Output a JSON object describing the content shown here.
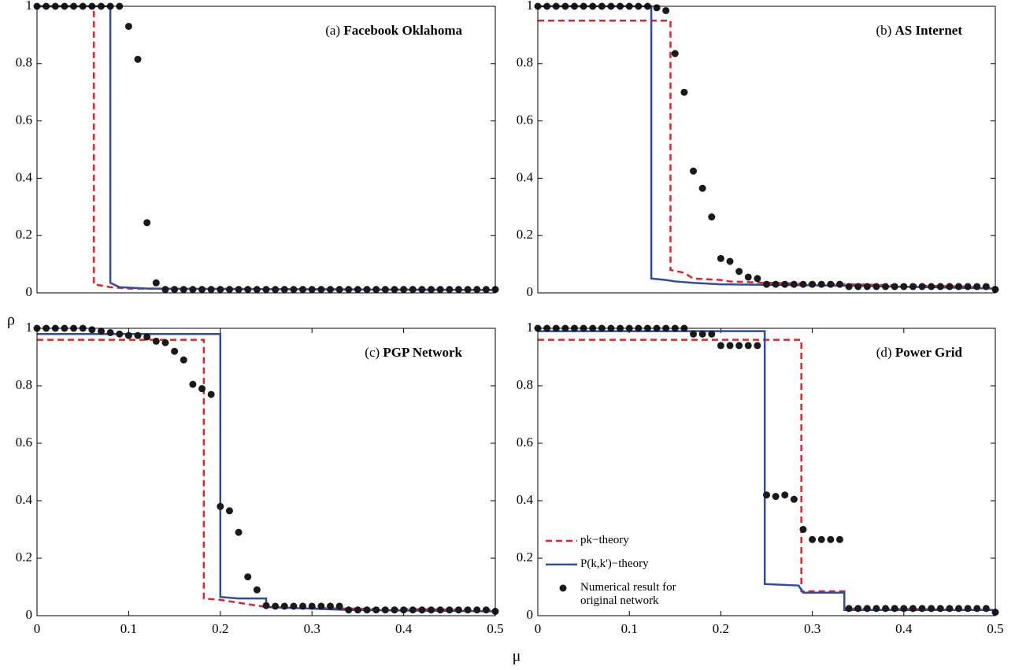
{
  "ylabel": "ρ",
  "xlabel": "μ",
  "chart_data": [
    {
      "type": "line",
      "panel": "(a)",
      "title": "Facebook Oklahoma",
      "xlim": [
        0,
        0.5
      ],
      "ylim": [
        0,
        1
      ],
      "yticks": [
        0,
        0.2,
        0.4,
        0.6,
        0.8,
        1
      ],
      "series": [
        {
          "color": "#e8202a",
          "style": "dashed",
          "x": [
            0,
            0.062,
            0.062,
            0.08,
            0.1,
            0.5
          ],
          "values": [
            1,
            1,
            0.03,
            0.02,
            0.015,
            0.01
          ]
        },
        {
          "color": "#2e4d9e",
          "style": "solid",
          "x": [
            0,
            0.08,
            0.08,
            0.09,
            0.12,
            0.5
          ],
          "values": [
            1,
            1,
            0.035,
            0.02,
            0.015,
            0.01
          ]
        },
        {
          "color": "#1a1a1a",
          "style": "dots",
          "x": [
            0,
            0.01,
            0.02,
            0.03,
            0.04,
            0.05,
            0.06,
            0.07,
            0.08,
            0.09,
            0.1,
            0.11,
            0.12,
            0.13,
            0.14,
            0.15,
            0.16,
            0.17,
            0.18,
            0.19,
            0.2,
            0.21,
            0.22,
            0.23,
            0.24,
            0.25,
            0.26,
            0.27,
            0.28,
            0.29,
            0.3,
            0.31,
            0.32,
            0.33,
            0.34,
            0.35,
            0.36,
            0.37,
            0.38,
            0.39,
            0.4,
            0.41,
            0.42,
            0.43,
            0.44,
            0.45,
            0.46,
            0.47,
            0.48,
            0.49,
            0.5
          ],
          "values": [
            1,
            1,
            1,
            1,
            1,
            1,
            1,
            1,
            1,
            1,
            0.93,
            0.815,
            0.245,
            0.035,
            0.012,
            0.012,
            0.012,
            0.012,
            0.012,
            0.012,
            0.012,
            0.012,
            0.012,
            0.012,
            0.012,
            0.012,
            0.012,
            0.012,
            0.012,
            0.012,
            0.012,
            0.012,
            0.012,
            0.012,
            0.012,
            0.012,
            0.012,
            0.012,
            0.012,
            0.012,
            0.012,
            0.012,
            0.012,
            0.012,
            0.012,
            0.012,
            0.012,
            0.012,
            0.012,
            0.012,
            0.012
          ]
        }
      ]
    },
    {
      "type": "line",
      "panel": "(b)",
      "title": "AS Internet",
      "xlim": [
        0,
        0.5
      ],
      "ylim": [
        0,
        1
      ],
      "yticks": [
        0,
        0.2,
        0.4,
        0.6,
        0.8,
        1
      ],
      "series": [
        {
          "color": "#e8202a",
          "style": "dashed",
          "x": [
            0,
            0.145,
            0.145,
            0.16,
            0.17,
            0.2,
            0.21,
            0.25,
            0.34,
            0.5
          ],
          "values": [
            0.95,
            0.95,
            0.08,
            0.07,
            0.05,
            0.045,
            0.04,
            0.035,
            0.03,
            0.02
          ]
        },
        {
          "color": "#2e4d9e",
          "style": "solid",
          "x": [
            0,
            0.124,
            0.124,
            0.14,
            0.15,
            0.17,
            0.2,
            0.34,
            0.5
          ],
          "values": [
            1,
            1,
            0.05,
            0.045,
            0.04,
            0.035,
            0.03,
            0.025,
            0.015
          ]
        },
        {
          "color": "#1a1a1a",
          "style": "dots",
          "x": [
            0,
            0.01,
            0.02,
            0.03,
            0.04,
            0.05,
            0.06,
            0.07,
            0.08,
            0.09,
            0.1,
            0.11,
            0.12,
            0.13,
            0.14,
            0.15,
            0.16,
            0.17,
            0.18,
            0.19,
            0.2,
            0.21,
            0.22,
            0.23,
            0.24,
            0.25,
            0.26,
            0.27,
            0.28,
            0.29,
            0.3,
            0.31,
            0.32,
            0.33,
            0.34,
            0.35,
            0.36,
            0.37,
            0.38,
            0.39,
            0.4,
            0.41,
            0.42,
            0.43,
            0.44,
            0.45,
            0.46,
            0.47,
            0.48,
            0.49,
            0.5
          ],
          "values": [
            1,
            1,
            1,
            1,
            1,
            1,
            1,
            1,
            1,
            1,
            1,
            1,
            1,
            0.995,
            0.985,
            0.835,
            0.7,
            0.425,
            0.365,
            0.265,
            0.12,
            0.11,
            0.075,
            0.055,
            0.05,
            0.03,
            0.03,
            0.03,
            0.03,
            0.03,
            0.03,
            0.03,
            0.03,
            0.03,
            0.022,
            0.022,
            0.022,
            0.022,
            0.022,
            0.022,
            0.022,
            0.022,
            0.022,
            0.022,
            0.022,
            0.022,
            0.022,
            0.022,
            0.022,
            0.022,
            0.012
          ]
        }
      ]
    },
    {
      "type": "line",
      "panel": "(c)",
      "title": "PGP Network",
      "xlim": [
        0,
        0.5
      ],
      "ylim": [
        0,
        1
      ],
      "yticks": [
        0,
        0.2,
        0.4,
        0.6,
        0.8,
        1
      ],
      "xticks": [
        0,
        0.1,
        0.2,
        0.3,
        0.4,
        0.5
      ],
      "series": [
        {
          "color": "#e8202a",
          "style": "dashed",
          "x": [
            0,
            0.182,
            0.182,
            0.2,
            0.25,
            0.33,
            0.5
          ],
          "values": [
            0.96,
            0.96,
            0.06,
            0.055,
            0.03,
            0.025,
            0.02
          ]
        },
        {
          "color": "#2e4d9e",
          "style": "solid",
          "x": [
            0,
            0.2,
            0.2,
            0.22,
            0.25,
            0.25,
            0.34,
            0.5
          ],
          "values": [
            0.98,
            0.98,
            0.065,
            0.06,
            0.06,
            0.03,
            0.02,
            0.015
          ]
        },
        {
          "color": "#1a1a1a",
          "style": "dots",
          "x": [
            0,
            0.01,
            0.02,
            0.03,
            0.04,
            0.05,
            0.06,
            0.07,
            0.08,
            0.09,
            0.1,
            0.11,
            0.12,
            0.13,
            0.14,
            0.15,
            0.16,
            0.17,
            0.18,
            0.19,
            0.2,
            0.21,
            0.22,
            0.23,
            0.24,
            0.25,
            0.26,
            0.27,
            0.28,
            0.29,
            0.3,
            0.31,
            0.32,
            0.33,
            0.34,
            0.35,
            0.36,
            0.37,
            0.38,
            0.39,
            0.4,
            0.41,
            0.42,
            0.43,
            0.44,
            0.45,
            0.46,
            0.47,
            0.48,
            0.49,
            0.5
          ],
          "values": [
            1,
            1,
            1,
            1,
            1,
            1,
            0.995,
            0.99,
            0.985,
            0.98,
            0.975,
            0.975,
            0.97,
            0.955,
            0.95,
            0.92,
            0.89,
            0.805,
            0.79,
            0.77,
            0.38,
            0.365,
            0.29,
            0.135,
            0.09,
            0.035,
            0.033,
            0.033,
            0.033,
            0.033,
            0.033,
            0.033,
            0.033,
            0.033,
            0.02,
            0.02,
            0.02,
            0.02,
            0.02,
            0.02,
            0.02,
            0.02,
            0.02,
            0.02,
            0.02,
            0.02,
            0.02,
            0.02,
            0.02,
            0.02,
            0.015
          ]
        }
      ]
    },
    {
      "type": "line",
      "panel": "(d)",
      "title": "Power Grid",
      "xlim": [
        0,
        0.5
      ],
      "ylim": [
        0,
        1
      ],
      "yticks": [
        0,
        0.2,
        0.4,
        0.6,
        0.8,
        1
      ],
      "xticks": [
        0,
        0.1,
        0.2,
        0.3,
        0.4,
        0.5
      ],
      "legend": "lower left",
      "series": [
        {
          "name": "pk−theory",
          "color": "#e8202a",
          "style": "dashed",
          "x": [
            0,
            0.288,
            0.288,
            0.335,
            0.335,
            0.5
          ],
          "values": [
            0.96,
            0.96,
            0.085,
            0.085,
            0.025,
            0.02
          ]
        },
        {
          "name": "P(k,k')−theory",
          "color": "#2e4d9e",
          "style": "solid",
          "x": [
            0,
            0.248,
            0.248,
            0.285,
            0.29,
            0.335,
            0.335,
            0.5
          ],
          "values": [
            0.99,
            0.99,
            0.11,
            0.105,
            0.08,
            0.08,
            0.02,
            0.02
          ]
        },
        {
          "name": "Numerical result for original network",
          "color": "#1a1a1a",
          "style": "dots",
          "x": [
            0,
            0.01,
            0.02,
            0.03,
            0.04,
            0.05,
            0.06,
            0.07,
            0.08,
            0.09,
            0.1,
            0.11,
            0.12,
            0.13,
            0.14,
            0.15,
            0.16,
            0.17,
            0.18,
            0.19,
            0.2,
            0.21,
            0.22,
            0.23,
            0.24,
            0.25,
            0.26,
            0.27,
            0.28,
            0.29,
            0.3,
            0.31,
            0.32,
            0.33,
            0.34,
            0.35,
            0.36,
            0.37,
            0.38,
            0.39,
            0.4,
            0.41,
            0.42,
            0.43,
            0.44,
            0.45,
            0.46,
            0.47,
            0.48,
            0.49,
            0.5
          ],
          "values": [
            1,
            1,
            1,
            1,
            1,
            1,
            1,
            1,
            1,
            1,
            1,
            1,
            1,
            1,
            1,
            1,
            1,
            0.98,
            0.98,
            0.98,
            0.94,
            0.94,
            0.94,
            0.94,
            0.94,
            0.42,
            0.415,
            0.42,
            0.405,
            0.3,
            0.265,
            0.265,
            0.265,
            0.265,
            0.025,
            0.025,
            0.025,
            0.025,
            0.025,
            0.025,
            0.025,
            0.025,
            0.025,
            0.025,
            0.025,
            0.025,
            0.025,
            0.025,
            0.025,
            0.025,
            0.012
          ]
        }
      ]
    }
  ]
}
